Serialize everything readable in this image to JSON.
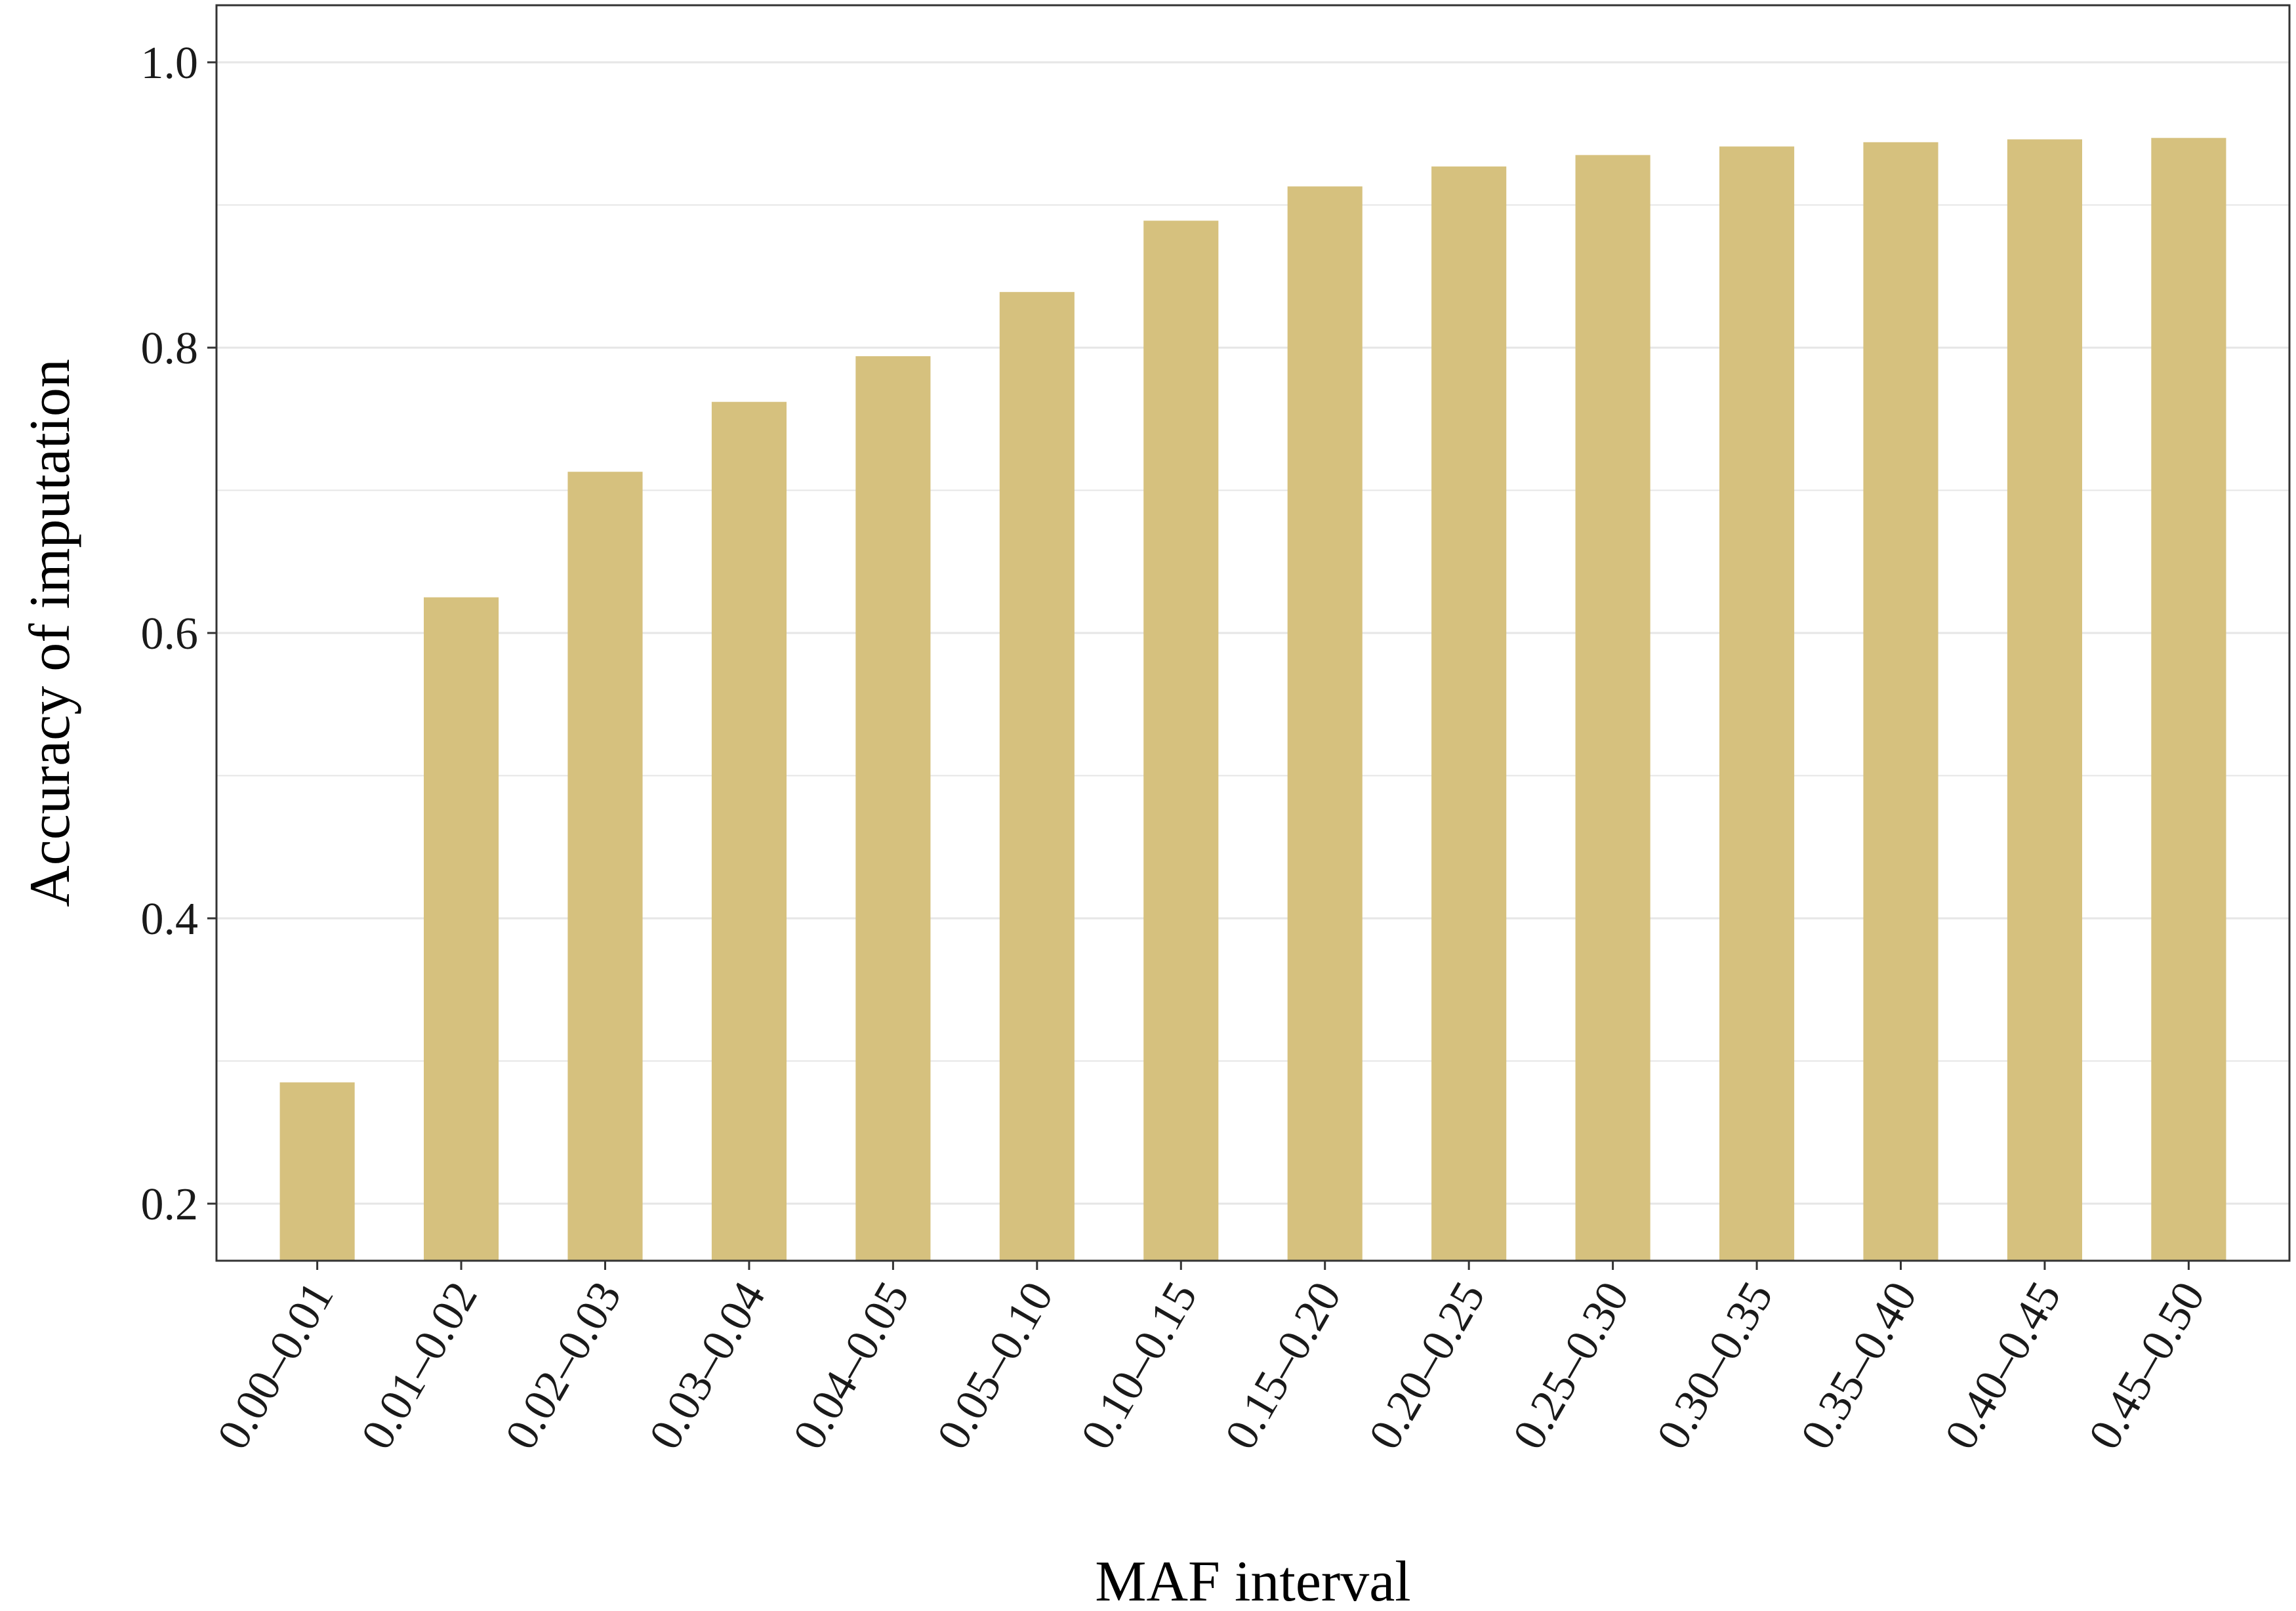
{
  "chart_data": {
    "type": "bar",
    "title": "",
    "xlabel": "MAF interval",
    "ylabel": "Accuracy of imputation",
    "categories": [
      "0.00–0.01",
      "0.01–0.02",
      "0.02–0.03",
      "0.03–0.04",
      "0.04–0.05",
      "0.05–0.10",
      "0.10–0.15",
      "0.15–0.20",
      "0.20–0.25",
      "0.25–0.30",
      "0.30–0.35",
      "0.35–0.40",
      "0.40–0.45",
      "0.45–0.50"
    ],
    "values": [
      0.285,
      0.625,
      0.713,
      0.762,
      0.794,
      0.839,
      0.889,
      0.913,
      0.927,
      0.935,
      0.941,
      0.944,
      0.946,
      0.947
    ],
    "ylim": [
      0.16,
      1.04
    ],
    "yticks": [
      0.2,
      0.4,
      0.6,
      0.8,
      1.0
    ],
    "ytick_labels": [
      "0.2",
      "0.4",
      "0.6",
      "0.8",
      "1.0"
    ],
    "grid": true,
    "legend": "none",
    "colors": {
      "bar": "#D6C17E",
      "grid": "#E6E6E6",
      "border": "#333333",
      "text": "#1a1a1a"
    }
  }
}
